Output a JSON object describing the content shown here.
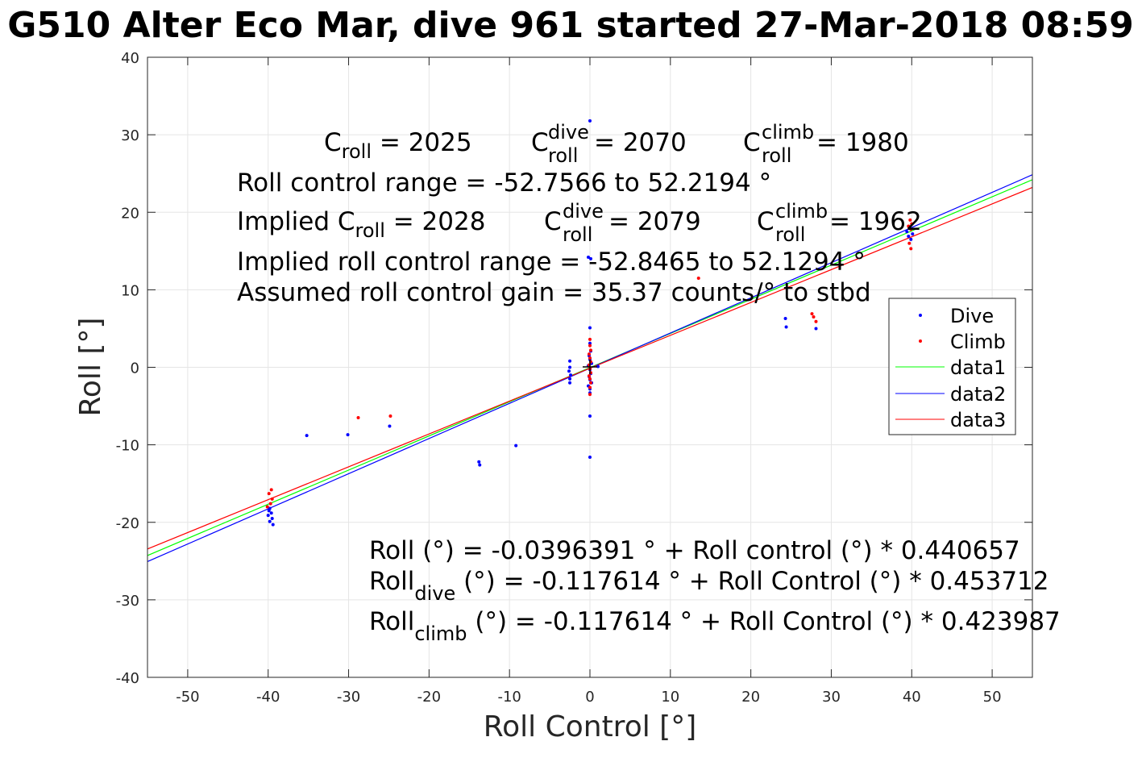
{
  "chart_data": {
    "type": "scatter",
    "title": "G510 Alter Eco Mar, dive 961 started 27-Mar-2018 08:59",
    "xlabel": "Roll Control [°]",
    "ylabel": "Roll [°]",
    "xlim": [
      -55,
      55
    ],
    "ylim": [
      -40,
      40
    ],
    "xticks": [
      -50,
      -40,
      -30,
      -20,
      -10,
      0,
      10,
      20,
      30,
      40,
      50
    ],
    "yticks": [
      -40,
      -30,
      -20,
      -10,
      0,
      10,
      20,
      30,
      40
    ],
    "grid": true,
    "legend_position": "right",
    "series": [
      {
        "name": "Dive",
        "kind": "points",
        "color": "#0000ff",
        "points": [
          [
            0,
            31.8
          ],
          [
            -0.2,
            14.2
          ],
          [
            0.1,
            14.0
          ],
          [
            0,
            5.1
          ],
          [
            0,
            3.1
          ],
          [
            0.1,
            2.1
          ],
          [
            -0.1,
            1.5
          ],
          [
            0,
            1.0
          ],
          [
            0.2,
            0.5
          ],
          [
            -0.2,
            0.2
          ],
          [
            0,
            -0.3
          ],
          [
            0.1,
            -0.8
          ],
          [
            -0.1,
            -1.2
          ],
          [
            0,
            -1.6
          ],
          [
            0.2,
            -2.0
          ],
          [
            -0.2,
            -2.4
          ],
          [
            0,
            -2.8
          ],
          [
            0,
            -3.3
          ],
          [
            0,
            -6.3
          ],
          [
            0,
            -11.6
          ],
          [
            1,
            0.1
          ],
          [
            -2.5,
            0.8
          ],
          [
            -2.5,
            0
          ],
          [
            -2.6,
            -0.5
          ],
          [
            -2.4,
            -1.0
          ],
          [
            -2.5,
            -1.5
          ],
          [
            -2.5,
            -2.0
          ],
          [
            -9.2,
            -10.1
          ],
          [
            -13.8,
            -12.2
          ],
          [
            -13.7,
            -12.6
          ],
          [
            -24.9,
            -7.6
          ],
          [
            -30.1,
            -8.7
          ],
          [
            -35.2,
            -8.8
          ],
          [
            -39.8,
            -18.2
          ],
          [
            -39.6,
            -18.8
          ],
          [
            -40.0,
            -19.1
          ],
          [
            -39.5,
            -19.5
          ],
          [
            -39.8,
            -19.9
          ],
          [
            -39.4,
            -20.3
          ],
          [
            -39.9,
            -18.5
          ],
          [
            24.3,
            6.3
          ],
          [
            24.4,
            5.2
          ],
          [
            28.1,
            5.0
          ],
          [
            39.4,
            17.5
          ],
          [
            39.6,
            16.9
          ],
          [
            39.9,
            16.5
          ],
          [
            39.7,
            18.1
          ],
          [
            40.1,
            17.2
          ]
        ]
      },
      {
        "name": "Climb",
        "kind": "points",
        "color": "#ff0000",
        "points": [
          [
            0,
            3.6
          ],
          [
            0,
            2.8
          ],
          [
            0.1,
            2.2
          ],
          [
            -0.1,
            1.7
          ],
          [
            0,
            1.2
          ],
          [
            0.1,
            0.7
          ],
          [
            -0.1,
            0.3
          ],
          [
            0,
            -0.2
          ],
          [
            0.1,
            -0.7
          ],
          [
            -0.1,
            -1.1
          ],
          [
            0,
            -1.5
          ],
          [
            0.1,
            -2.0
          ],
          [
            0,
            -2.6
          ],
          [
            0,
            -3.5
          ],
          [
            13.5,
            11.5
          ],
          [
            -28.8,
            -6.5
          ],
          [
            -24.8,
            -6.3
          ],
          [
            -39.6,
            -15.8
          ],
          [
            -39.9,
            -16.3
          ],
          [
            -39.5,
            -17.0
          ],
          [
            -39.7,
            -17.6
          ],
          [
            -40.1,
            -18.0
          ],
          [
            27.6,
            6.9
          ],
          [
            27.8,
            6.5
          ],
          [
            28.1,
            5.9
          ],
          [
            39.8,
            19.0
          ],
          [
            40.0,
            18.5
          ],
          [
            39.6,
            18.2
          ],
          [
            39.9,
            17.8
          ],
          [
            39.7,
            16.0
          ],
          [
            39.9,
            15.3
          ]
        ]
      },
      {
        "name": "data1",
        "kind": "line",
        "color": "#00ff00",
        "x": [
          -55,
          55
        ],
        "y": [
          -24.28,
          24.2
        ]
      },
      {
        "name": "data2",
        "kind": "line",
        "color": "#0000ff",
        "x": [
          -55,
          55
        ],
        "y": [
          -25.07,
          24.84
        ]
      },
      {
        "name": "data3",
        "kind": "line",
        "color": "#ff0000",
        "x": [
          -55,
          55
        ],
        "y": [
          -23.44,
          23.2
        ]
      }
    ],
    "annotations": {
      "top1": {
        "a": "C",
        "a_sub": "roll",
        "a_val": " = 2025",
        "b": "C",
        "b_sup": "dive",
        "b_sub": "roll",
        "b_val": " = 2070",
        "c": "C",
        "c_sup": "climb",
        "c_sub": "roll",
        "c_val": " = 1980"
      },
      "range": "Roll control range = -52.7566 to 52.2194 °",
      "implied": {
        "prefix": "Implied C",
        "a_sub": "roll",
        "a_val": " = 2028",
        "b": "C",
        "b_sup": "dive",
        "b_sub": "roll",
        "b_val": " = 2079",
        "c": "C",
        "c_sup": "climb",
        "c_sub": "roll",
        "c_val": " = 1962"
      },
      "implied_range": "Implied roll control range = -52.8465 to 52.1294 °",
      "gain": "Assumed roll control gain = 35.37 counts/° to stbd",
      "eq1": "Roll (°) = -0.0396391 ° + Roll control (°) * 0.440657",
      "eq2": {
        "pre": "Roll",
        "sub": "dive",
        "post": " (°) = -0.117614 ° + Roll Control (°) * 0.453712"
      },
      "eq3": {
        "pre": "Roll",
        "sub": "climb",
        "post": " (°) = -0.117614 ° + Roll Control (°) * 0.423987"
      }
    }
  }
}
